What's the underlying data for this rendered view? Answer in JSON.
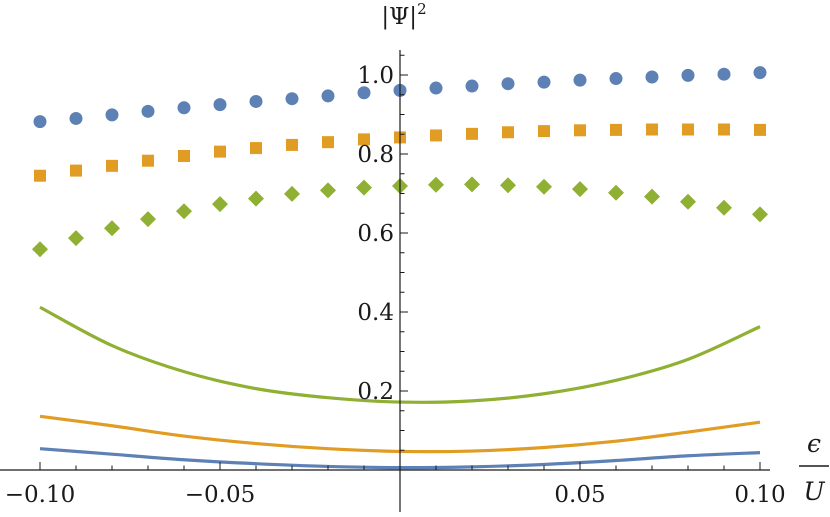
{
  "chart_data": {
    "type": "scatter",
    "xlabel_numerator": "ϵ",
    "xlabel_denominator": "U",
    "ylabel_base": "|Ψ|",
    "ylabel_exponent": "2",
    "xlim": [
      -0.1,
      0.1
    ],
    "ylim": [
      0.0,
      1.05
    ],
    "x_ticks": [
      -0.1,
      -0.05,
      0.05,
      0.1
    ],
    "x_tick_labels": [
      "−0.10",
      "−0.05",
      "0.05",
      "0.10"
    ],
    "y_ticks": [
      0.2,
      0.4,
      0.6,
      0.8,
      1.0
    ],
    "y_tick_labels": [
      "0.2",
      "0.4",
      "0.6",
      "0.8",
      "1.0"
    ],
    "grid": false,
    "x": [
      -0.1,
      -0.09,
      -0.08,
      -0.07,
      -0.06,
      -0.05,
      -0.04,
      -0.03,
      -0.02,
      -0.01,
      0.0,
      0.01,
      0.02,
      0.03,
      0.04,
      0.05,
      0.06,
      0.07,
      0.08,
      0.09,
      0.1
    ],
    "point_series": [
      {
        "marker": "circle",
        "color": "#5e81b5",
        "values": [
          0.882,
          0.89,
          0.899,
          0.908,
          0.917,
          0.925,
          0.933,
          0.94,
          0.947,
          0.955,
          0.961,
          0.967,
          0.972,
          0.978,
          0.982,
          0.987,
          0.991,
          0.995,
          0.999,
          1.002,
          1.006
        ]
      },
      {
        "marker": "square",
        "color": "#e19c24",
        "values": [
          0.745,
          0.758,
          0.77,
          0.783,
          0.795,
          0.806,
          0.815,
          0.823,
          0.83,
          0.837,
          0.842,
          0.847,
          0.851,
          0.855,
          0.858,
          0.86,
          0.861,
          0.862,
          0.862,
          0.862,
          0.861
        ]
      },
      {
        "marker": "diamond",
        "color": "#8fb032",
        "values": [
          0.559,
          0.587,
          0.612,
          0.635,
          0.655,
          0.673,
          0.687,
          0.699,
          0.708,
          0.715,
          0.719,
          0.722,
          0.723,
          0.721,
          0.717,
          0.711,
          0.702,
          0.692,
          0.679,
          0.664,
          0.647
        ]
      }
    ],
    "line_series": [
      {
        "color": "#5e81b5",
        "x": [
          -0.1,
          -0.08,
          -0.06,
          -0.04,
          -0.02,
          0.0,
          0.02,
          0.04,
          0.06,
          0.08,
          0.1
        ],
        "values": [
          0.054,
          0.04,
          0.026,
          0.016,
          0.009,
          0.006,
          0.008,
          0.014,
          0.024,
          0.036,
          0.044
        ]
      },
      {
        "color": "#e19c24",
        "x": [
          -0.1,
          -0.08,
          -0.06,
          -0.04,
          -0.02,
          0.0,
          0.02,
          0.04,
          0.06,
          0.08,
          0.1
        ],
        "values": [
          0.136,
          0.112,
          0.086,
          0.067,
          0.054,
          0.047,
          0.048,
          0.057,
          0.073,
          0.096,
          0.121
        ]
      },
      {
        "color": "#8fb032",
        "x": [
          -0.1,
          -0.08,
          -0.06,
          -0.04,
          -0.02,
          0.0,
          0.02,
          0.04,
          0.06,
          0.08,
          0.1
        ],
        "values": [
          0.412,
          0.315,
          0.249,
          0.206,
          0.183,
          0.172,
          0.175,
          0.193,
          0.227,
          0.28,
          0.363
        ]
      }
    ]
  }
}
